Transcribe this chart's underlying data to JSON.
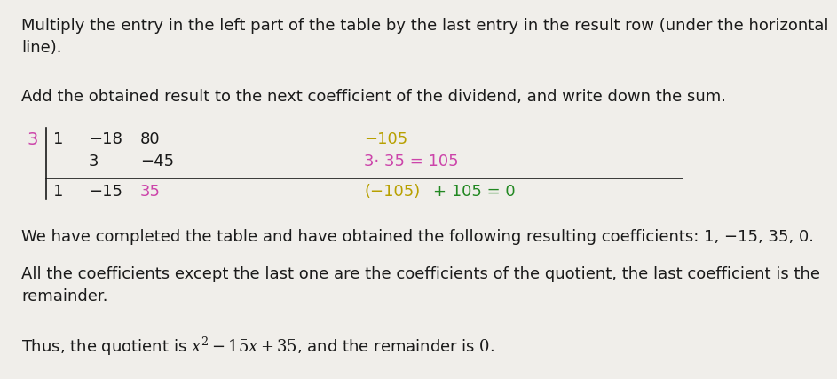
{
  "bg_color": "#f0eeea",
  "text_color": "#1a1a1a",
  "magenta": "#cc44aa",
  "olive": "#b8a000",
  "green": "#228822",
  "para1": "Multiply the entry in the left part of the table by the last entry in the result row (under the horizontal\nline).",
  "para2": "Add the obtained result to the next coefficient of the dividend, and write down the sum.",
  "para3": "We have completed the table and have obtained the following resulting coefficients: 1, −15, 35, 0.",
  "para4": "All the coefficients except the last one are the coefficients of the quotient, the last coefficient is the\nremainder.",
  "font_size": 13,
  "fig_w": 7.69,
  "fig_h": 4.08
}
